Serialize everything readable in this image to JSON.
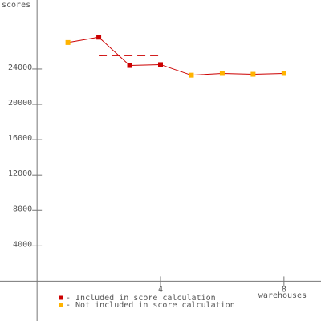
{
  "chart_data": {
    "type": "line",
    "y_label": "scores",
    "x_label": "warehouses",
    "x": [
      1,
      2,
      3,
      4,
      5,
      6,
      7,
      8
    ],
    "series": [
      {
        "color": "#cc0000",
        "values": [
          27000,
          27600,
          24400,
          24500,
          23300,
          23500,
          23400,
          23500
        ],
        "point_colors": [
          "#ffb300",
          "#cc0000",
          "#cc0000",
          "#cc0000",
          "#ffb300",
          "#ffb300",
          "#ffb300",
          "#ffb300"
        ]
      }
    ],
    "reference_line": {
      "value": 25500,
      "x": [
        2,
        4
      ],
      "color": "#cc0000",
      "dashed": true
    },
    "legend": [
      {
        "name": "- Included in score calculation",
        "color": "#cc0000"
      },
      {
        "name": "- Not included in score calculation",
        "color": "#ffb300"
      }
    ],
    "xlim": [
      -1.2,
      9.2
    ],
    "ylim": [
      -4500,
      31800
    ],
    "xticks": [
      4,
      8
    ],
    "yticks": [
      4000,
      8000,
      12000,
      16000,
      20000,
      24000
    ],
    "grid": false
  }
}
